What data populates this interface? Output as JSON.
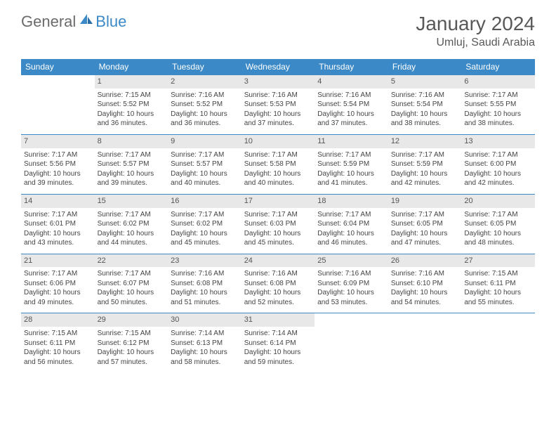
{
  "logo": {
    "general": "General",
    "blue": "Blue"
  },
  "title": "January 2024",
  "location": "Umluj, Saudi Arabia",
  "colors": {
    "brand": "#3b89c7",
    "headerText": "#ffffff",
    "dayBg": "#e8e8e8",
    "text": "#585858"
  },
  "dayHeaders": [
    "Sunday",
    "Monday",
    "Tuesday",
    "Wednesday",
    "Thursday",
    "Friday",
    "Saturday"
  ],
  "weeks": [
    [
      null,
      {
        "n": "1",
        "sr": "Sunrise: 7:15 AM",
        "ss": "Sunset: 5:52 PM",
        "d1": "Daylight: 10 hours",
        "d2": "and 36 minutes."
      },
      {
        "n": "2",
        "sr": "Sunrise: 7:16 AM",
        "ss": "Sunset: 5:52 PM",
        "d1": "Daylight: 10 hours",
        "d2": "and 36 minutes."
      },
      {
        "n": "3",
        "sr": "Sunrise: 7:16 AM",
        "ss": "Sunset: 5:53 PM",
        "d1": "Daylight: 10 hours",
        "d2": "and 37 minutes."
      },
      {
        "n": "4",
        "sr": "Sunrise: 7:16 AM",
        "ss": "Sunset: 5:54 PM",
        "d1": "Daylight: 10 hours",
        "d2": "and 37 minutes."
      },
      {
        "n": "5",
        "sr": "Sunrise: 7:16 AM",
        "ss": "Sunset: 5:54 PM",
        "d1": "Daylight: 10 hours",
        "d2": "and 38 minutes."
      },
      {
        "n": "6",
        "sr": "Sunrise: 7:17 AM",
        "ss": "Sunset: 5:55 PM",
        "d1": "Daylight: 10 hours",
        "d2": "and 38 minutes."
      }
    ],
    [
      {
        "n": "7",
        "sr": "Sunrise: 7:17 AM",
        "ss": "Sunset: 5:56 PM",
        "d1": "Daylight: 10 hours",
        "d2": "and 39 minutes."
      },
      {
        "n": "8",
        "sr": "Sunrise: 7:17 AM",
        "ss": "Sunset: 5:57 PM",
        "d1": "Daylight: 10 hours",
        "d2": "and 39 minutes."
      },
      {
        "n": "9",
        "sr": "Sunrise: 7:17 AM",
        "ss": "Sunset: 5:57 PM",
        "d1": "Daylight: 10 hours",
        "d2": "and 40 minutes."
      },
      {
        "n": "10",
        "sr": "Sunrise: 7:17 AM",
        "ss": "Sunset: 5:58 PM",
        "d1": "Daylight: 10 hours",
        "d2": "and 40 minutes."
      },
      {
        "n": "11",
        "sr": "Sunrise: 7:17 AM",
        "ss": "Sunset: 5:59 PM",
        "d1": "Daylight: 10 hours",
        "d2": "and 41 minutes."
      },
      {
        "n": "12",
        "sr": "Sunrise: 7:17 AM",
        "ss": "Sunset: 5:59 PM",
        "d1": "Daylight: 10 hours",
        "d2": "and 42 minutes."
      },
      {
        "n": "13",
        "sr": "Sunrise: 7:17 AM",
        "ss": "Sunset: 6:00 PM",
        "d1": "Daylight: 10 hours",
        "d2": "and 42 minutes."
      }
    ],
    [
      {
        "n": "14",
        "sr": "Sunrise: 7:17 AM",
        "ss": "Sunset: 6:01 PM",
        "d1": "Daylight: 10 hours",
        "d2": "and 43 minutes."
      },
      {
        "n": "15",
        "sr": "Sunrise: 7:17 AM",
        "ss": "Sunset: 6:02 PM",
        "d1": "Daylight: 10 hours",
        "d2": "and 44 minutes."
      },
      {
        "n": "16",
        "sr": "Sunrise: 7:17 AM",
        "ss": "Sunset: 6:02 PM",
        "d1": "Daylight: 10 hours",
        "d2": "and 45 minutes."
      },
      {
        "n": "17",
        "sr": "Sunrise: 7:17 AM",
        "ss": "Sunset: 6:03 PM",
        "d1": "Daylight: 10 hours",
        "d2": "and 45 minutes."
      },
      {
        "n": "18",
        "sr": "Sunrise: 7:17 AM",
        "ss": "Sunset: 6:04 PM",
        "d1": "Daylight: 10 hours",
        "d2": "and 46 minutes."
      },
      {
        "n": "19",
        "sr": "Sunrise: 7:17 AM",
        "ss": "Sunset: 6:05 PM",
        "d1": "Daylight: 10 hours",
        "d2": "and 47 minutes."
      },
      {
        "n": "20",
        "sr": "Sunrise: 7:17 AM",
        "ss": "Sunset: 6:05 PM",
        "d1": "Daylight: 10 hours",
        "d2": "and 48 minutes."
      }
    ],
    [
      {
        "n": "21",
        "sr": "Sunrise: 7:17 AM",
        "ss": "Sunset: 6:06 PM",
        "d1": "Daylight: 10 hours",
        "d2": "and 49 minutes."
      },
      {
        "n": "22",
        "sr": "Sunrise: 7:17 AM",
        "ss": "Sunset: 6:07 PM",
        "d1": "Daylight: 10 hours",
        "d2": "and 50 minutes."
      },
      {
        "n": "23",
        "sr": "Sunrise: 7:16 AM",
        "ss": "Sunset: 6:08 PM",
        "d1": "Daylight: 10 hours",
        "d2": "and 51 minutes."
      },
      {
        "n": "24",
        "sr": "Sunrise: 7:16 AM",
        "ss": "Sunset: 6:08 PM",
        "d1": "Daylight: 10 hours",
        "d2": "and 52 minutes."
      },
      {
        "n": "25",
        "sr": "Sunrise: 7:16 AM",
        "ss": "Sunset: 6:09 PM",
        "d1": "Daylight: 10 hours",
        "d2": "and 53 minutes."
      },
      {
        "n": "26",
        "sr": "Sunrise: 7:16 AM",
        "ss": "Sunset: 6:10 PM",
        "d1": "Daylight: 10 hours",
        "d2": "and 54 minutes."
      },
      {
        "n": "27",
        "sr": "Sunrise: 7:15 AM",
        "ss": "Sunset: 6:11 PM",
        "d1": "Daylight: 10 hours",
        "d2": "and 55 minutes."
      }
    ],
    [
      {
        "n": "28",
        "sr": "Sunrise: 7:15 AM",
        "ss": "Sunset: 6:11 PM",
        "d1": "Daylight: 10 hours",
        "d2": "and 56 minutes."
      },
      {
        "n": "29",
        "sr": "Sunrise: 7:15 AM",
        "ss": "Sunset: 6:12 PM",
        "d1": "Daylight: 10 hours",
        "d2": "and 57 minutes."
      },
      {
        "n": "30",
        "sr": "Sunrise: 7:14 AM",
        "ss": "Sunset: 6:13 PM",
        "d1": "Daylight: 10 hours",
        "d2": "and 58 minutes."
      },
      {
        "n": "31",
        "sr": "Sunrise: 7:14 AM",
        "ss": "Sunset: 6:14 PM",
        "d1": "Daylight: 10 hours",
        "d2": "and 59 minutes."
      },
      null,
      null,
      null
    ]
  ]
}
